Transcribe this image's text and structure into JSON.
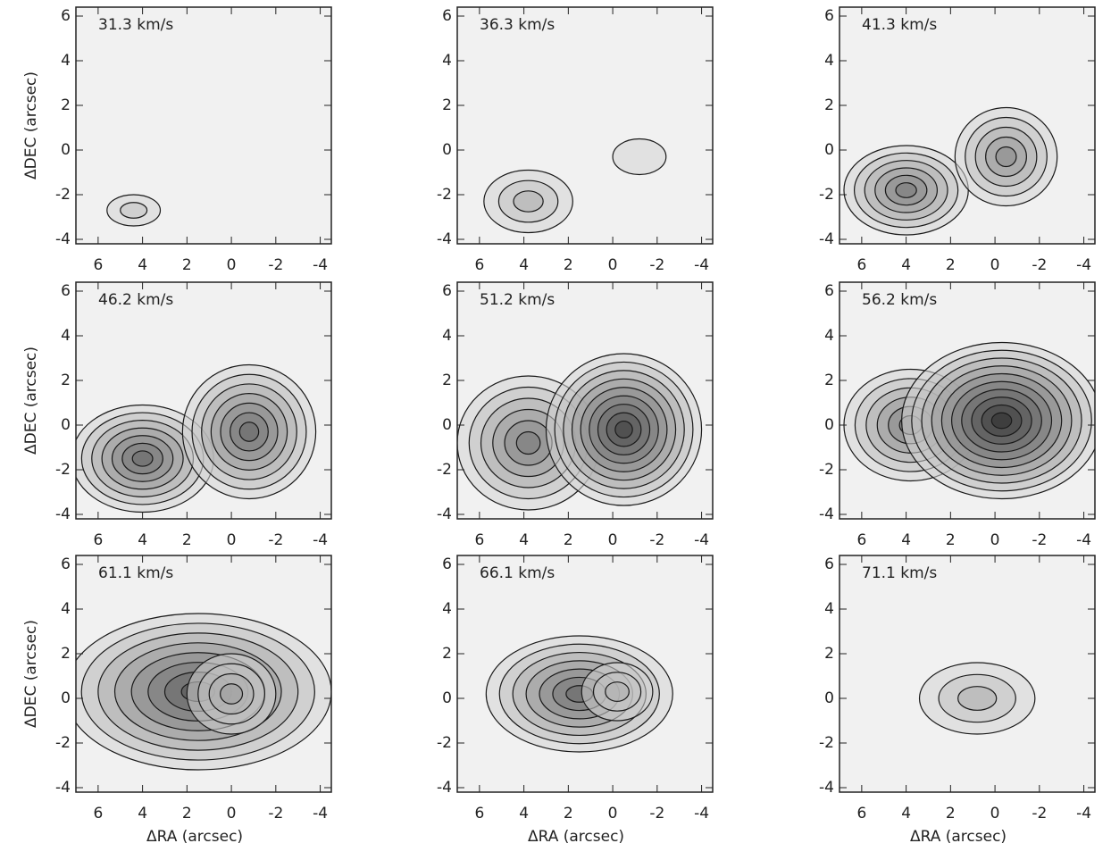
{
  "chart_data": [
    {
      "type": "contour",
      "title": "31.3 km/s",
      "ylabel": "ΔDEC (arcsec)",
      "xlim": [
        7,
        -4.5
      ],
      "ylim": [
        -4.2,
        6.4
      ],
      "xticks": [
        6,
        4,
        2,
        0,
        -2,
        -4
      ],
      "yticks": [
        -4,
        -2,
        0,
        2,
        4,
        6
      ],
      "peaks": [
        {
          "x": 4.4,
          "y": -2.7,
          "rx": 1.2,
          "ry": 0.7,
          "levels": 2
        }
      ]
    },
    {
      "type": "contour",
      "title": "36.3 km/s",
      "xlim": [
        7,
        -4.5
      ],
      "ylim": [
        -4.2,
        6.4
      ],
      "xticks": [
        6,
        4,
        2,
        0,
        -2,
        -4
      ],
      "yticks": [
        -4,
        -2,
        0,
        2,
        4,
        6
      ],
      "peaks": [
        {
          "x": 3.8,
          "y": -2.3,
          "rx": 2,
          "ry": 1.4,
          "levels": 3
        },
        {
          "x": -1.2,
          "y": -0.3,
          "rx": 1.2,
          "ry": 0.8,
          "levels": 1
        }
      ]
    },
    {
      "type": "contour",
      "title": "41.3 km/s",
      "xlim": [
        7,
        -4.5
      ],
      "ylim": [
        -4.2,
        6.4
      ],
      "xticks": [
        6,
        4,
        2,
        0,
        -2,
        -4
      ],
      "yticks": [
        -4,
        -2,
        0,
        2,
        4,
        6
      ],
      "peaks": [
        {
          "x": 4,
          "y": -1.8,
          "rx": 2.8,
          "ry": 2,
          "levels": 6
        },
        {
          "x": -0.5,
          "y": -0.3,
          "rx": 2.3,
          "ry": 2.2,
          "levels": 5
        }
      ]
    },
    {
      "type": "contour",
      "title": "46.2 km/s",
      "ylabel": "ΔDEC (arcsec)",
      "xlim": [
        7,
        -4.5
      ],
      "ylim": [
        -4.2,
        6.4
      ],
      "xticks": [
        6,
        4,
        2,
        0,
        -2,
        -4
      ],
      "yticks": [
        -4,
        -2,
        0,
        2,
        4,
        6
      ],
      "peaks": [
        {
          "x": 4,
          "y": -1.5,
          "rx": 3.2,
          "ry": 2.4,
          "levels": 7
        },
        {
          "x": -0.8,
          "y": -0.3,
          "rx": 3,
          "ry": 3,
          "levels": 7
        }
      ]
    },
    {
      "type": "contour",
      "title": "51.2 km/s",
      "xlim": [
        7,
        -4.5
      ],
      "ylim": [
        -4.2,
        6.4
      ],
      "xticks": [
        6,
        4,
        2,
        0,
        -2,
        -4
      ],
      "yticks": [
        -4,
        -2,
        0,
        2,
        4,
        6
      ],
      "peaks": [
        {
          "x": 3.8,
          "y": -0.8,
          "rx": 3.2,
          "ry": 3,
          "levels": 6
        },
        {
          "x": -0.5,
          "y": -0.2,
          "rx": 3.5,
          "ry": 3.4,
          "levels": 9
        }
      ]
    },
    {
      "type": "contour",
      "title": "56.2 km/s",
      "xlim": [
        7,
        -4.5
      ],
      "ylim": [
        -4.2,
        6.4
      ],
      "xticks": [
        6,
        4,
        2,
        0,
        -2,
        -4
      ],
      "yticks": [
        -4,
        -2,
        0,
        2,
        4,
        6
      ],
      "peaks": [
        {
          "x": 3.8,
          "y": 0,
          "rx": 3,
          "ry": 2.5,
          "levels": 6
        },
        {
          "x": -0.3,
          "y": 0.2,
          "rx": 4.5,
          "ry": 3.5,
          "levels": 10
        }
      ]
    },
    {
      "type": "contour",
      "title": "61.1 km/s",
      "ylabel": "ΔDEC (arcsec)",
      "xlabel": "ΔRA (arcsec)",
      "xlim": [
        7,
        -4.5
      ],
      "ylim": [
        -4.2,
        6.4
      ],
      "xticks": [
        6,
        4,
        2,
        0,
        -2,
        -4
      ],
      "yticks": [
        -4,
        -2,
        0,
        2,
        4,
        6
      ],
      "peaks": [
        {
          "x": 1.5,
          "y": 0.3,
          "rx": 6,
          "ry": 3.5,
          "levels": 8
        },
        {
          "x": 0,
          "y": 0.2,
          "rx": 2,
          "ry": 1.8,
          "levels": 4
        }
      ]
    },
    {
      "type": "contour",
      "title": "66.1 km/s",
      "xlabel": "ΔRA (arcsec)",
      "xlim": [
        7,
        -4.5
      ],
      "ylim": [
        -4.2,
        6.4
      ],
      "xticks": [
        6,
        4,
        2,
        0,
        -2,
        -4
      ],
      "yticks": [
        -4,
        -2,
        0,
        2,
        4,
        6
      ],
      "peaks": [
        {
          "x": 1.5,
          "y": 0.2,
          "rx": 4.2,
          "ry": 2.6,
          "levels": 7
        },
        {
          "x": -0.2,
          "y": 0.3,
          "rx": 1.6,
          "ry": 1.3,
          "levels": 3
        }
      ]
    },
    {
      "type": "contour",
      "title": "71.1 km/s",
      "xlabel": "ΔRA (arcsec)",
      "xlim": [
        7,
        -4.5
      ],
      "ylim": [
        -4.2,
        6.4
      ],
      "xticks": [
        6,
        4,
        2,
        0,
        -2,
        -4
      ],
      "yticks": [
        -4,
        -2,
        0,
        2,
        4,
        6
      ],
      "peaks": [
        {
          "x": 0.8,
          "y": 0,
          "rx": 2.6,
          "ry": 1.6,
          "levels": 3
        }
      ]
    }
  ]
}
